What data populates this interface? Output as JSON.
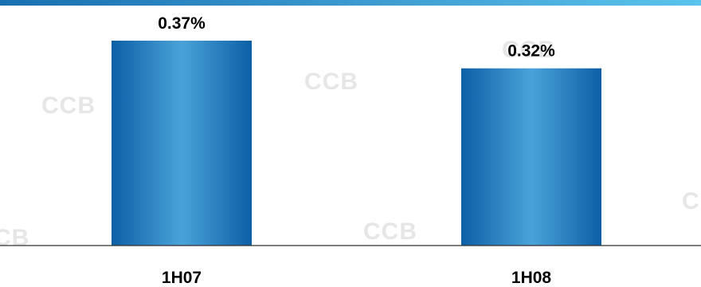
{
  "colors": {
    "bar_dark": "#0d5fa6",
    "bar_light": "#4aa3d8",
    "top_rule_left": "#1a6fb0",
    "top_rule_right": "#5bc3ec",
    "axis": "#333333",
    "label": "#000000",
    "watermark": "#e6e6e6"
  },
  "chart_data": {
    "type": "bar",
    "categories": [
      "1H07",
      "1H08"
    ],
    "values": [
      0.37,
      0.32
    ],
    "value_labels": [
      "0.37%",
      "0.32%"
    ],
    "ylim": [
      0,
      0.37
    ],
    "grid": false,
    "legend": "none"
  }
}
